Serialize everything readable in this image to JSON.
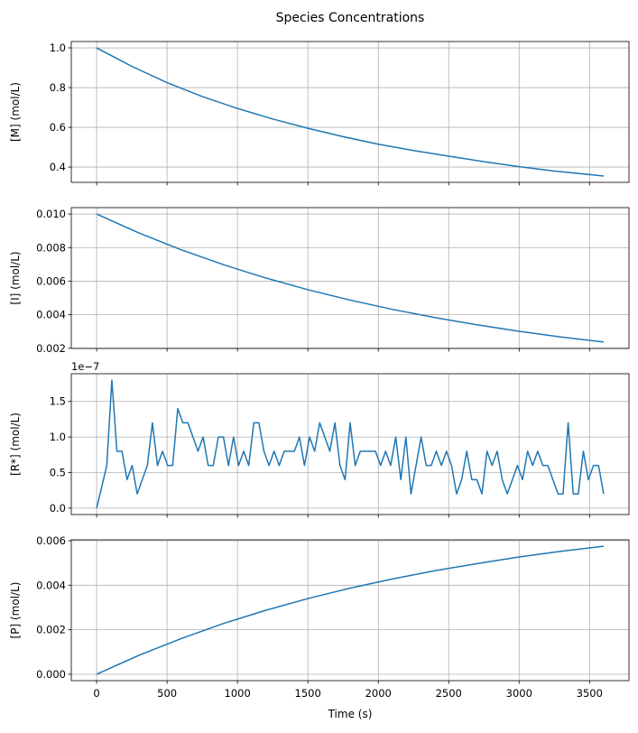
{
  "chart_data": {
    "title": "Species Concentrations",
    "xlabel": "Time (s)",
    "xlim": [
      -180,
      3780
    ],
    "xticks": [
      0,
      500,
      1000,
      1500,
      2000,
      2500,
      3000,
      3500
    ],
    "xtick_labels": [
      "0",
      "500",
      "1000",
      "1500",
      "2000",
      "2500",
      "3000",
      "3500"
    ],
    "grid": true,
    "line_color": "#1f77b4",
    "subplots": [
      {
        "type": "line",
        "ylabel": "[M] (mol/L)",
        "ylim": [
          0.323,
          1.032
        ],
        "yticks": [
          0.4,
          0.6,
          0.8,
          1.0
        ],
        "ytick_labels": [
          "0.4",
          "0.6",
          "0.8",
          "1.0"
        ],
        "x": [
          0,
          250,
          500,
          750,
          1000,
          1250,
          1500,
          1750,
          2000,
          2250,
          2500,
          2750,
          3000,
          3250,
          3500,
          3600
        ],
        "y": [
          1.0,
          0.907,
          0.825,
          0.755,
          0.695,
          0.642,
          0.595,
          0.553,
          0.515,
          0.483,
          0.455,
          0.427,
          0.402,
          0.38,
          0.362,
          0.355
        ]
      },
      {
        "type": "line",
        "ylabel": "[I] (mol/L)",
        "ylim": [
          0.00199,
          0.01038
        ],
        "yticks": [
          0.002,
          0.004,
          0.006,
          0.008,
          0.01
        ],
        "ytick_labels": [
          "0.002",
          "0.004",
          "0.006",
          "0.008",
          "0.010"
        ],
        "x": [
          0,
          300,
          600,
          900,
          1200,
          1500,
          1800,
          2100,
          2400,
          2700,
          3000,
          3300,
          3600
        ],
        "y": [
          0.01,
          0.00887,
          0.00787,
          0.00698,
          0.00619,
          0.00549,
          0.00487,
          0.00432,
          0.00383,
          0.0034,
          0.00301,
          0.00267,
          0.00237
        ]
      },
      {
        "type": "line",
        "ylabel": "[R*] (mol/L)",
        "offset_text": "1e−7",
        "ylim": [
          -0.09,
          1.89
        ],
        "yticks": [
          0.0,
          0.5,
          1.0,
          1.5
        ],
        "ytick_labels": [
          "0.0",
          "0.5",
          "1.0",
          "1.5"
        ],
        "x_step": 36,
        "y": [
          0,
          0.3,
          0.6,
          1.8,
          0.8,
          0.8,
          0.4,
          0.6,
          0.2,
          0.4,
          0.6,
          1.2,
          0.6,
          0.8,
          0.6,
          0.6,
          1.4,
          1.2,
          1.2,
          1.0,
          0.8,
          1.0,
          0.6,
          0.6,
          1.0,
          1.0,
          0.6,
          1.0,
          0.6,
          0.8,
          0.6,
          1.2,
          1.2,
          0.8,
          0.6,
          0.8,
          0.6,
          0.8,
          0.8,
          0.8,
          1.0,
          0.6,
          1.0,
          0.8,
          1.2,
          1.0,
          0.8,
          1.2,
          0.6,
          0.4,
          1.2,
          0.6,
          0.8,
          0.8,
          0.8,
          0.8,
          0.6,
          0.8,
          0.6,
          1.0,
          0.4,
          1.0,
          0.2,
          0.6,
          1.0,
          0.6,
          0.6,
          0.8,
          0.6,
          0.8,
          0.6,
          0.2,
          0.4,
          0.8,
          0.4,
          0.4,
          0.2,
          0.8,
          0.6,
          0.8,
          0.4,
          0.2,
          0.4,
          0.6,
          0.4,
          0.8,
          0.6,
          0.8,
          0.6,
          0.6,
          0.4,
          0.2,
          0.2,
          1.2,
          0.2,
          0.2,
          0.8,
          0.4,
          0.6,
          0.6,
          0.2
        ]
      },
      {
        "type": "line",
        "ylabel": "[P] (mol/L)",
        "ylim": [
          -0.000288,
          0.00604
        ],
        "yticks": [
          0.0,
          0.002,
          0.004,
          0.006
        ],
        "ytick_labels": [
          "0.000",
          "0.002",
          "0.004",
          "0.006"
        ],
        "x": [
          0,
          300,
          600,
          900,
          1200,
          1500,
          1800,
          2100,
          2400,
          2700,
          3000,
          3300,
          3600
        ],
        "y": [
          0,
          0.00085,
          0.0016,
          0.00228,
          0.00287,
          0.0034,
          0.00387,
          0.00428,
          0.00465,
          0.00497,
          0.00527,
          0.00553,
          0.00575
        ]
      }
    ]
  }
}
